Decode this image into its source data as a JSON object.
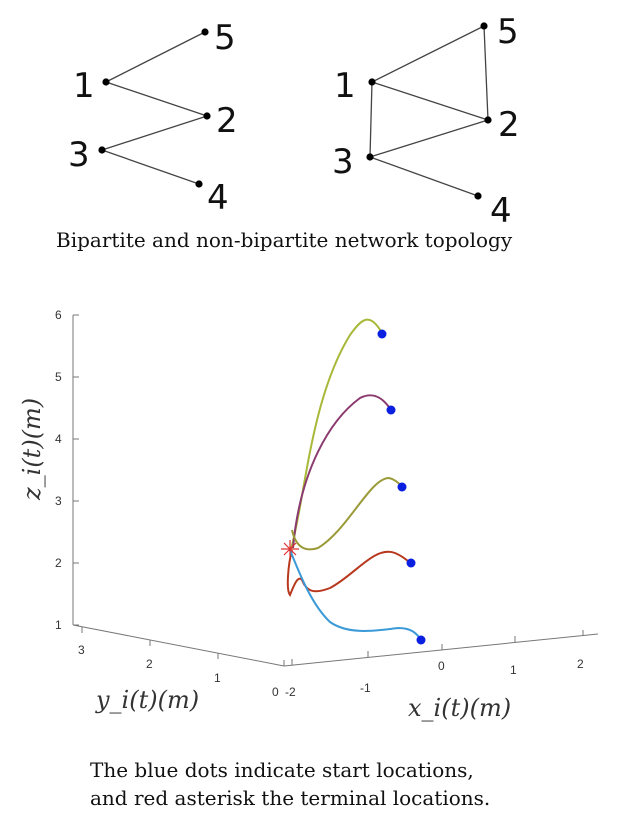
{
  "networks": {
    "bipartite": {
      "nodes": [
        {
          "id": "1",
          "label": "1"
        },
        {
          "id": "2",
          "label": "2"
        },
        {
          "id": "3",
          "label": "3"
        },
        {
          "id": "4",
          "label": "4"
        },
        {
          "id": "5",
          "label": "5"
        }
      ],
      "edges": [
        [
          "1",
          "5"
        ],
        [
          "1",
          "2"
        ],
        [
          "3",
          "2"
        ],
        [
          "3",
          "4"
        ]
      ]
    },
    "non_bipartite": {
      "nodes": [
        {
          "id": "1",
          "label": "1"
        },
        {
          "id": "2",
          "label": "2"
        },
        {
          "id": "3",
          "label": "3"
        },
        {
          "id": "4",
          "label": "4"
        },
        {
          "id": "5",
          "label": "5"
        }
      ],
      "edges": [
        [
          "1",
          "5"
        ],
        [
          "1",
          "2"
        ],
        [
          "5",
          "2"
        ],
        [
          "1",
          "3"
        ],
        [
          "3",
          "2"
        ],
        [
          "3",
          "4"
        ]
      ]
    },
    "caption": "Bipartite and non-bipartite network topology"
  },
  "plot3d": {
    "z_ticks": [
      "1",
      "2",
      "3",
      "4",
      "5",
      "6"
    ],
    "y_ticks": [
      "3",
      "2",
      "1",
      "0"
    ],
    "x_ticks": [
      "-2",
      "-1",
      "0",
      "1",
      "2"
    ],
    "xlabel": "x_i(t)(m)",
    "ylabel": "y_i(t)(m)",
    "zlabel": "z_i(t)(m)",
    "start_marker_color": "#0a1fe0",
    "terminal_marker_color": "#e03030",
    "trajectory_colors": [
      "#a8b838",
      "#8a3a6e",
      "#9a9a38",
      "#b8381e",
      "#3a9ad8"
    ]
  },
  "caption": {
    "line1": "The blue dots indicate start locations,",
    "line2": "and red asterisk the terminal locations."
  }
}
